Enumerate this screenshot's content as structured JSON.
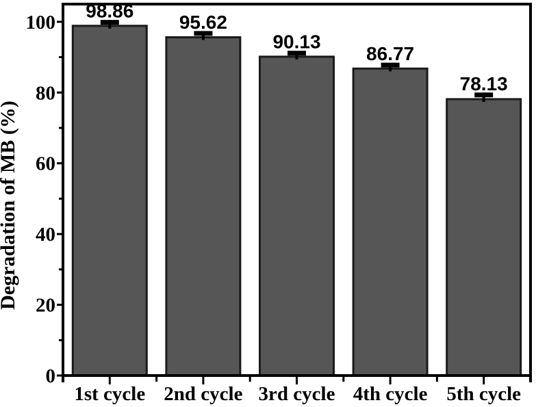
{
  "figure": {
    "background": "#ffffff"
  },
  "chart_data": {
    "type": "bar",
    "title": "",
    "categories": [
      "1st cycle",
      "2nd cycle",
      "3rd cycle",
      "4th cycle",
      "5th cycle"
    ],
    "values": [
      98.86,
      95.62,
      90.13,
      86.77,
      78.13
    ],
    "value_labels": [
      "98.86",
      "95.62",
      "90.13",
      "86.77",
      "78.13"
    ],
    "errors_plus": [
      1.0,
      1.1,
      1.0,
      1.0,
      1.2
    ],
    "xlabel": "",
    "ylabel": "Degradation of MB (%)",
    "ylim": [
      0,
      105
    ],
    "yticks_major": [
      0,
      20,
      40,
      60,
      80,
      100
    ],
    "yticks_minor": [
      10,
      30,
      50,
      70,
      90
    ],
    "grid": false,
    "legend": "none",
    "bar_fill": "#565656",
    "bar_stroke": "#1a1a1a",
    "axis_color": "#000000",
    "text_color": "#000000"
  }
}
